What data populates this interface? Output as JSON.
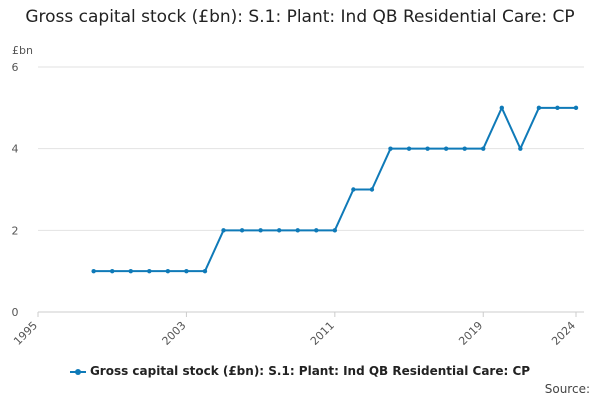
{
  "chart_data": {
    "type": "line",
    "title": "Gross capital stock (£bn): S.1: Plant: Ind QB Residential Care: CP",
    "ylabel": "£bn",
    "xlabel": "",
    "ylim": [
      0,
      6
    ],
    "xlim": [
      1995,
      2024
    ],
    "x_ticks": [
      1995,
      2003,
      2011,
      2019,
      2024
    ],
    "y_ticks": [
      0,
      2,
      4,
      6
    ],
    "grid": "horizontal",
    "legend_position": "bottom",
    "series": [
      {
        "name": "Gross capital stock (£bn): S.1: Plant: Ind QB Residential Care: CP",
        "color": "#0f7ab8",
        "x": [
          1998,
          1999,
          2000,
          2001,
          2002,
          2003,
          2004,
          2005,
          2006,
          2007,
          2008,
          2009,
          2010,
          2011,
          2012,
          2013,
          2014,
          2015,
          2016,
          2017,
          2018,
          2019,
          2020,
          2021,
          2022,
          2023,
          2024
        ],
        "values": [
          1,
          1,
          1,
          1,
          1,
          1,
          1,
          2,
          2,
          2,
          2,
          2,
          2,
          2,
          3,
          3,
          4,
          4,
          4,
          4,
          4,
          4,
          5,
          4,
          5,
          5,
          5
        ]
      }
    ]
  },
  "footer": {
    "source_label": "Source:"
  }
}
